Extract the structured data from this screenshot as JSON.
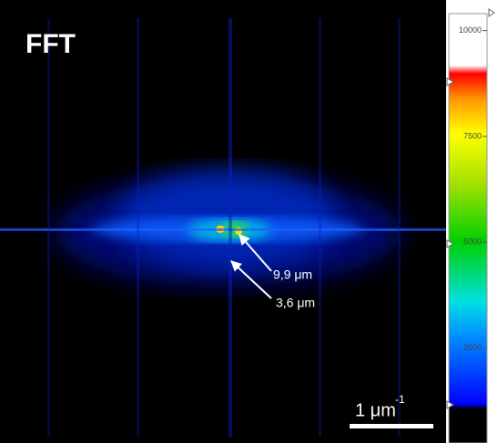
{
  "panel_label": "FFT",
  "annotations": [
    {
      "label": "9,9 μm"
    },
    {
      "label": "3,6 μm"
    }
  ],
  "scale_bar": {
    "label": "1 μm",
    "exponent": "-1"
  },
  "colorbar": {
    "lim": [
      0,
      10400
    ],
    "ticks": [
      2500,
      5000,
      7500,
      10000
    ]
  }
}
